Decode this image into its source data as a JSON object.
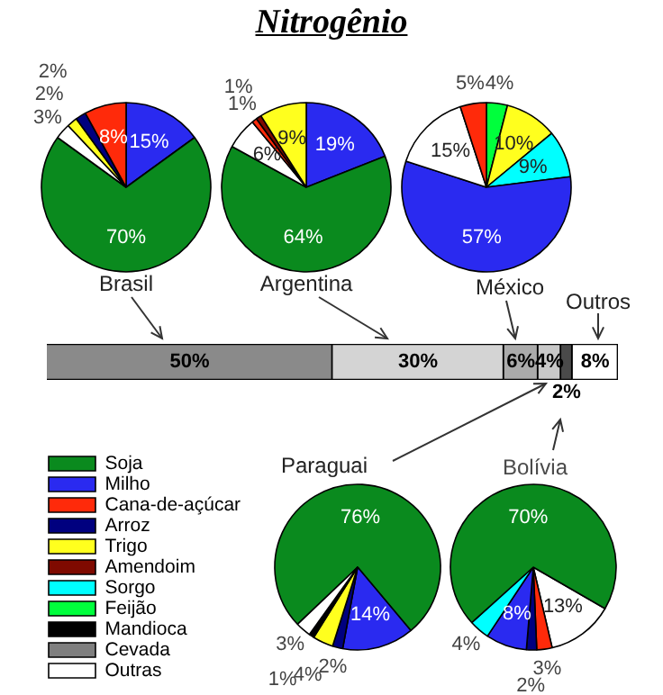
{
  "chart_data": [
    {
      "type": "pie",
      "categories": [
        null,
        null,
        null,
        null,
        null,
        null
      ],
      "values": [
        15,
        70,
        3,
        2,
        2,
        8
      ],
      "colors": [
        "#2a2af0",
        "#0a8a1e",
        "#ffffff",
        "#ffff1e",
        "#00007f",
        "#ff2a0a"
      ],
      "value_labels": [
        "15%",
        "70%",
        "3%",
        "2%",
        "2%",
        "8%"
      ]
    },
    {
      "type": "pie",
      "categories": [
        null,
        null,
        null,
        null,
        null,
        null
      ],
      "values": [
        19,
        64,
        6,
        1,
        1,
        9
      ],
      "colors": [
        "#2a2af0",
        "#0a8a1e",
        "#ffffff",
        "#ff2a0a",
        "#7f0a00",
        "#ffff1e"
      ],
      "value_labels": [
        "19%",
        "64%",
        "6%",
        "1%",
        "1%",
        "9%"
      ]
    },
    {
      "type": "pie",
      "categories": [
        null,
        null,
        null,
        null,
        null,
        null
      ],
      "values": [
        4,
        10,
        9,
        57,
        15,
        5
      ],
      "colors": [
        "#00ff3c",
        "#ffff1e",
        "#00ffff",
        "#2a2af0",
        "#ffffff",
        "#ff2a0a"
      ],
      "value_labels": [
        "4%",
        "10%",
        "9%",
        "57%",
        "15%",
        "5%"
      ]
    },
    {
      "type": "bar",
      "title": "Nitrogênio",
      "orientation": "horizontal",
      "stacked": true,
      "categories": [
        null
      ],
      "series": [
        {
          "name": "Brasil",
          "color": "#8a8a8a",
          "values": [
            50
          ],
          "value_labels": [
            "50%"
          ]
        },
        {
          "name": "Argentina",
          "color": "#d4d4d4",
          "values": [
            30
          ],
          "value_labels": [
            "30%"
          ]
        },
        {
          "name": "México",
          "color": "#ababab",
          "values": [
            6
          ],
          "value_labels": [
            "6%"
          ]
        },
        {
          "name": "Paraguai",
          "color": "#c8c8c8",
          "values": [
            4
          ],
          "value_labels": [
            "4%"
          ]
        },
        {
          "name": "Bolívia",
          "color": "#4a4a4a",
          "values": [
            2
          ],
          "value_labels": [
            "2%"
          ]
        },
        {
          "name": "Outros",
          "color": "#ffffff",
          "values": [
            8
          ],
          "value_labels": [
            "8%"
          ]
        }
      ]
    },
    {
      "type": "pie",
      "categories": [
        "Soja",
        "Milho",
        "Cana-de-açúcar",
        "Arroz",
        "Trigo",
        "Amendoim",
        "Sorgo",
        "Feijão",
        "Mandioca",
        "Cevada",
        "Outras"
      ],
      "values": [
        76,
        14,
        0,
        2,
        4,
        0,
        0,
        0,
        1,
        0,
        3
      ],
      "colors": [
        "#0a8a1e",
        "#2a2af0",
        "#ff2a0a",
        "#00007f",
        "#ffff1e",
        "#7f0a00",
        "#00ffff",
        "#00ff3c",
        "#000000",
        "#7f7f7f",
        "#ffffff"
      ],
      "value_labels": [
        "76%",
        "14%",
        null,
        "2%",
        "4%",
        null,
        null,
        null,
        "1%",
        null,
        "3%"
      ],
      "legend": "left"
    },
    {
      "type": "pie",
      "categories": [
        null,
        null,
        null,
        null,
        null,
        null
      ],
      "values": [
        13,
        3,
        2,
        8,
        4,
        70
      ],
      "colors": [
        "#ffffff",
        "#ff2a0a",
        "#00007f",
        "#2a2af0",
        "#00ffff",
        "#0a8a1e"
      ],
      "value_labels": [
        "13%",
        "3%",
        "2%",
        "8%",
        "4%",
        "70%"
      ]
    }
  ]
}
